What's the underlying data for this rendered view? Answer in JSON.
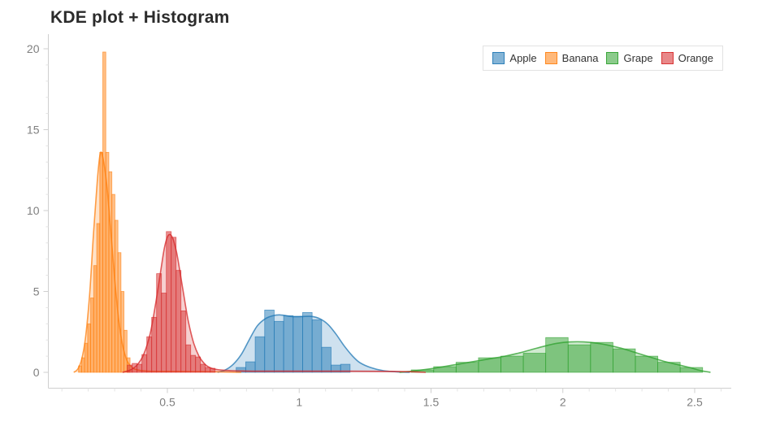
{
  "header": {
    "title": "KDE plot + Histogram"
  },
  "legend": {
    "items": [
      {
        "label": "Apple",
        "color": "#1f77b4"
      },
      {
        "label": "Banana",
        "color": "#ff7f0e"
      },
      {
        "label": "Grape",
        "color": "#2ca02c"
      },
      {
        "label": "Orange",
        "color": "#d62728"
      }
    ]
  },
  "chart_data": {
    "type": "histogram+kde",
    "title": "KDE plot + Histogram",
    "legend_position": "top-right",
    "grid": false,
    "x_axis": {
      "tick_values": [
        0.5,
        1,
        1.5,
        2,
        2.5
      ],
      "tick_labels": [
        "0.5",
        "1",
        "1.5",
        "2",
        "2.5"
      ],
      "minor_step": 0.1,
      "minor_range": [
        0.1,
        2.6
      ],
      "range": [
        0.05,
        2.64
      ]
    },
    "y_axis": {
      "tick_values": [
        0,
        5,
        10,
        15,
        20
      ],
      "tick_labels": [
        "0",
        "5",
        "10",
        "15",
        "20"
      ],
      "minor_step": 1,
      "range": [
        -1,
        21
      ]
    },
    "series": [
      {
        "name": "Apple",
        "color": "#1f77b4",
        "bins": {
          "start": 0.761,
          "width": 0.036,
          "heights": [
            0.3,
            0.65,
            2.2,
            3.85,
            3.15,
            3.5,
            3.45,
            3.7,
            3.25,
            1.55,
            0.45,
            0.5
          ]
        },
        "kde": [
          [
            0.69,
            0
          ],
          [
            0.72,
            0.15
          ],
          [
            0.75,
            0.5
          ],
          [
            0.78,
            1.1
          ],
          [
            0.81,
            2.0
          ],
          [
            0.84,
            2.85
          ],
          [
            0.87,
            3.3
          ],
          [
            0.9,
            3.5
          ],
          [
            0.93,
            3.55
          ],
          [
            0.97,
            3.45
          ],
          [
            1.01,
            3.45
          ],
          [
            1.05,
            3.45
          ],
          [
            1.08,
            3.3
          ],
          [
            1.11,
            2.95
          ],
          [
            1.14,
            2.35
          ],
          [
            1.17,
            1.65
          ],
          [
            1.2,
            1.05
          ],
          [
            1.23,
            0.6
          ],
          [
            1.27,
            0.3
          ],
          [
            1.32,
            0.1
          ],
          [
            1.38,
            0.02
          ],
          [
            1.42,
            0
          ]
        ]
      },
      {
        "name": "Banana",
        "color": "#ff7f0e",
        "bins": {
          "start": 0.163,
          "width": 0.0115,
          "heights": [
            0.4,
            0.9,
            1.8,
            3.0,
            4.6,
            6.6,
            9.2,
            13.6,
            19.8,
            13.6,
            12.4,
            11.0,
            9.4,
            7.4,
            5.0,
            2.6,
            0.9
          ]
        },
        "kde": [
          [
            0.145,
            0
          ],
          [
            0.16,
            0.2
          ],
          [
            0.175,
            0.8
          ],
          [
            0.19,
            2.2
          ],
          [
            0.205,
            4.8
          ],
          [
            0.22,
            8.6
          ],
          [
            0.235,
            12.0
          ],
          [
            0.245,
            13.5
          ],
          [
            0.255,
            13.3
          ],
          [
            0.27,
            11.6
          ],
          [
            0.285,
            8.8
          ],
          [
            0.3,
            5.8
          ],
          [
            0.315,
            3.3
          ],
          [
            0.33,
            1.7
          ],
          [
            0.345,
            0.8
          ],
          [
            0.36,
            0.4
          ],
          [
            0.38,
            0.18
          ],
          [
            0.42,
            0.08
          ],
          [
            0.5,
            0.06
          ],
          [
            0.6,
            0.05
          ],
          [
            0.7,
            0.03
          ],
          [
            0.78,
            0
          ]
        ]
      },
      {
        "name": "Grape",
        "color": "#2ca02c",
        "bins": {
          "start": 1.425,
          "width": 0.085,
          "heights": [
            0.15,
            0.35,
            0.62,
            0.9,
            1.0,
            1.18,
            2.15,
            1.7,
            1.85,
            1.45,
            1.0,
            0.62,
            0.3
          ]
        },
        "kde": [
          [
            1.38,
            0
          ],
          [
            1.43,
            0.08
          ],
          [
            1.48,
            0.18
          ],
          [
            1.53,
            0.3
          ],
          [
            1.58,
            0.44
          ],
          [
            1.63,
            0.58
          ],
          [
            1.68,
            0.72
          ],
          [
            1.73,
            0.86
          ],
          [
            1.78,
            1.0
          ],
          [
            1.83,
            1.18
          ],
          [
            1.88,
            1.4
          ],
          [
            1.93,
            1.62
          ],
          [
            1.98,
            1.8
          ],
          [
            2.03,
            1.88
          ],
          [
            2.08,
            1.88
          ],
          [
            2.13,
            1.8
          ],
          [
            2.18,
            1.65
          ],
          [
            2.23,
            1.45
          ],
          [
            2.28,
            1.2
          ],
          [
            2.33,
            0.95
          ],
          [
            2.38,
            0.7
          ],
          [
            2.43,
            0.5
          ],
          [
            2.48,
            0.3
          ],
          [
            2.52,
            0.12
          ],
          [
            2.56,
            0
          ]
        ]
      },
      {
        "name": "Orange",
        "color": "#d62728",
        "bins": {
          "start": 0.348,
          "width": 0.0185,
          "heights": [
            0.45,
            0.55,
            0.5,
            1.1,
            2.2,
            3.4,
            6.1,
            4.9,
            8.7,
            8.35,
            6.3,
            3.8,
            1.7,
            1.05,
            0.95,
            0.5,
            0.3,
            0.25
          ]
        },
        "kde": [
          [
            0.33,
            0
          ],
          [
            0.36,
            0.15
          ],
          [
            0.385,
            0.45
          ],
          [
            0.41,
            1.1
          ],
          [
            0.435,
            2.4
          ],
          [
            0.455,
            4.2
          ],
          [
            0.475,
            6.3
          ],
          [
            0.49,
            7.8
          ],
          [
            0.505,
            8.5
          ],
          [
            0.52,
            8.3
          ],
          [
            0.535,
            7.4
          ],
          [
            0.55,
            6.0
          ],
          [
            0.565,
            4.5
          ],
          [
            0.58,
            3.1
          ],
          [
            0.6,
            1.8
          ],
          [
            0.62,
            1.0
          ],
          [
            0.64,
            0.55
          ],
          [
            0.66,
            0.3
          ],
          [
            0.7,
            0.15
          ],
          [
            0.8,
            0.08
          ],
          [
            1.0,
            0.07
          ],
          [
            1.2,
            0.07
          ],
          [
            1.35,
            0.06
          ],
          [
            1.44,
            0.03
          ],
          [
            1.48,
            0
          ]
        ]
      }
    ]
  }
}
